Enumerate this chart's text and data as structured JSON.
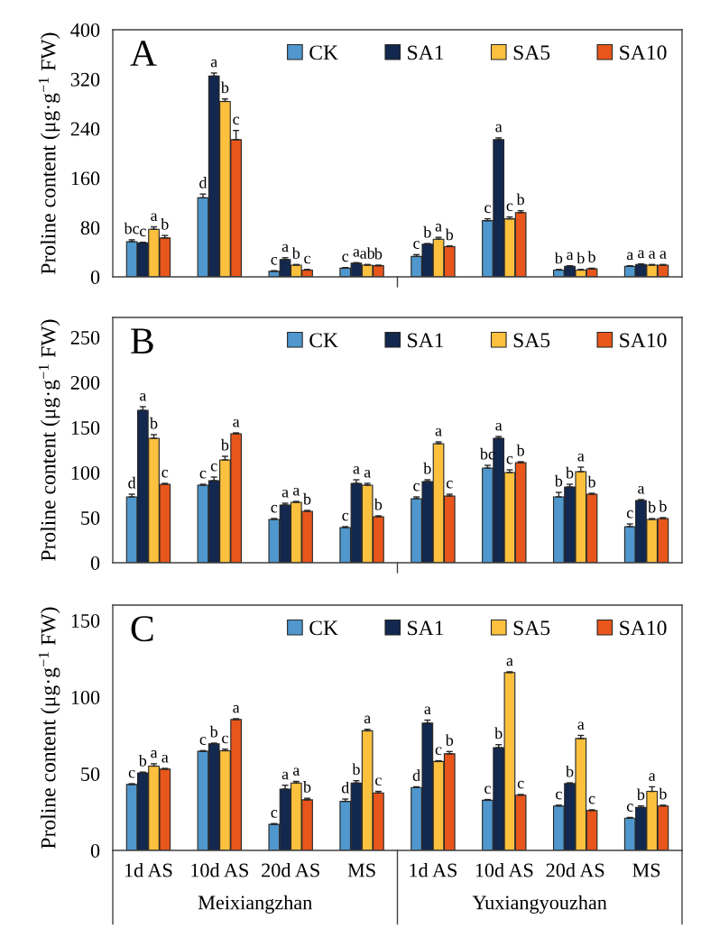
{
  "chart_data": [
    {
      "type": "bar",
      "ylabel": "Proline content (μg·g$^{−1}$ FW)",
      "categories": [
        null,
        null,
        null,
        null,
        null,
        null,
        null,
        null
      ],
      "ylim": [
        0,
        400
      ],
      "yticks": [
        0,
        80,
        160,
        240,
        320,
        400
      ],
      "legend": "top right",
      "tick_labels": "y",
      "annotations": [
        "A"
      ],
      "series": [
        {
          "name": "CK",
          "color": "#4f97cd",
          "values": [
            57,
            128,
            9,
            14,
            33,
            91,
            11,
            17
          ],
          "errors": [
            3,
            6,
            1,
            1,
            3,
            3,
            1,
            1
          ],
          "value_labels": [
            "bc",
            "d",
            "c",
            "c",
            "c",
            "c",
            "b",
            "a"
          ]
        },
        {
          "name": "SA1",
          "color": "#13284f",
          "values": [
            55,
            325,
            28,
            22,
            53,
            222,
            17,
            20
          ],
          "errors": [
            1,
            5,
            3,
            1,
            1,
            3,
            1,
            1
          ],
          "value_labels": [
            "c",
            "a",
            "a",
            "a",
            "b",
            "a",
            "a",
            "a"
          ]
        },
        {
          "name": "SA5",
          "color": "#fbc03e",
          "values": [
            77,
            284,
            19,
            19,
            61,
            94,
            11,
            19
          ],
          "errors": [
            4,
            4,
            1,
            1,
            3,
            3,
            1,
            1
          ],
          "value_labels": [
            "a",
            "b",
            "b",
            "ab",
            "a",
            "c",
            "b",
            "a"
          ]
        },
        {
          "name": "SA10",
          "color": "#e8561b",
          "values": [
            63,
            222,
            11,
            18,
            49,
            104,
            13,
            19
          ],
          "errors": [
            4,
            15,
            1,
            1,
            1,
            3,
            1,
            1
          ],
          "value_labels": [
            "b",
            "c",
            "c",
            "b",
            "b",
            "b",
            "b",
            "a"
          ]
        }
      ]
    },
    {
      "type": "bar",
      "ylabel": "Proline content (μg·g$^{−1}$ FW)",
      "categories": [
        null,
        null,
        null,
        null,
        null,
        null,
        null,
        null
      ],
      "ylim": [
        0,
        272
      ],
      "yticks": [
        0,
        50,
        100,
        150,
        200,
        250
      ],
      "legend": "top right",
      "tick_labels": "y",
      "annotations": [
        "B"
      ],
      "series": [
        {
          "name": "CK",
          "color": "#4f97cd",
          "values": [
            73,
            86,
            48,
            39,
            71,
            105,
            73,
            40
          ],
          "errors": [
            3,
            1,
            1,
            1,
            2,
            3,
            5,
            3
          ],
          "value_labels": [
            "d",
            "c",
            "c",
            "c",
            "c",
            "bc",
            "b",
            "c"
          ]
        },
        {
          "name": "SA1",
          "color": "#13284f",
          "values": [
            169,
            91,
            64,
            88,
            90,
            138,
            84,
            69
          ],
          "errors": [
            4,
            4,
            2,
            4,
            2,
            2,
            3,
            1
          ],
          "value_labels": [
            "a",
            "c",
            "a",
            "a",
            "b",
            "a",
            "b",
            "a"
          ]
        },
        {
          "name": "SA5",
          "color": "#fbc03e",
          "values": [
            138,
            114,
            67,
            86,
            132,
            100,
            101,
            48
          ],
          "errors": [
            4,
            4,
            1,
            2,
            2,
            3,
            5,
            1
          ],
          "value_labels": [
            "b",
            "b",
            "a",
            "a",
            "a",
            "c",
            "a",
            "b"
          ]
        },
        {
          "name": "SA10",
          "color": "#e8561b",
          "values": [
            87,
            143,
            57,
            51,
            74,
            111,
            76,
            49
          ],
          "errors": [
            1,
            1,
            1,
            1,
            2,
            1,
            1,
            1
          ],
          "value_labels": [
            "c",
            "a",
            "b",
            "b",
            "c",
            "b",
            "b",
            "b"
          ]
        }
      ]
    },
    {
      "type": "bar",
      "ylabel": "Proline content (μg·g$^{−1}$ FW)",
      "categories": [
        "1d AS",
        "10d AS",
        "20d AS",
        "MS",
        "1d AS",
        "10d AS",
        "20d AS",
        "MS"
      ],
      "ylim": [
        0,
        160
      ],
      "yticks": [
        0,
        50,
        100,
        150
      ],
      "legend": "top right",
      "annotations": [
        "C",
        "Meixiangzhan",
        "Yuxiangyouzhan"
      ],
      "series": [
        {
          "name": "CK",
          "color": "#4f97cd",
          "values": [
            43,
            64.6,
            17,
            32,
            41,
            32.7,
            29,
            21
          ],
          "errors": [
            0.5,
            0.5,
            0.5,
            1.5,
            0.5,
            0.5,
            0.5,
            0.5
          ],
          "value_labels": [
            "c",
            "c",
            "c",
            "d",
            "d",
            "c",
            "c",
            "c"
          ]
        },
        {
          "name": "SA1",
          "color": "#13284f",
          "values": [
            50.6,
            69.5,
            40,
            44,
            83,
            67,
            43.6,
            28
          ],
          "errors": [
            0.5,
            0.5,
            2.5,
            1.5,
            2,
            2,
            0.5,
            1
          ],
          "value_labels": [
            "b",
            "b",
            "a",
            "b",
            "a",
            "b",
            "b",
            "b"
          ]
        },
        {
          "name": "SA5",
          "color": "#fbc03e",
          "values": [
            55,
            65,
            44,
            78,
            58,
            116,
            73,
            38.5
          ],
          "errors": [
            1.5,
            1,
            1,
            1,
            0.5,
            0.5,
            2,
            3
          ],
          "value_labels": [
            "a",
            "c",
            "a",
            "a",
            "c",
            "a",
            "a",
            "a"
          ]
        },
        {
          "name": "SA10",
          "color": "#e8561b",
          "values": [
            53,
            85.4,
            33,
            37.5,
            63,
            36,
            26,
            29
          ],
          "errors": [
            0.5,
            0.5,
            1,
            1,
            1.5,
            0.5,
            0.5,
            0.5
          ],
          "value_labels": [
            "a",
            "a",
            "b",
            "c",
            "b",
            "c",
            "c",
            "b"
          ]
        }
      ]
    }
  ]
}
